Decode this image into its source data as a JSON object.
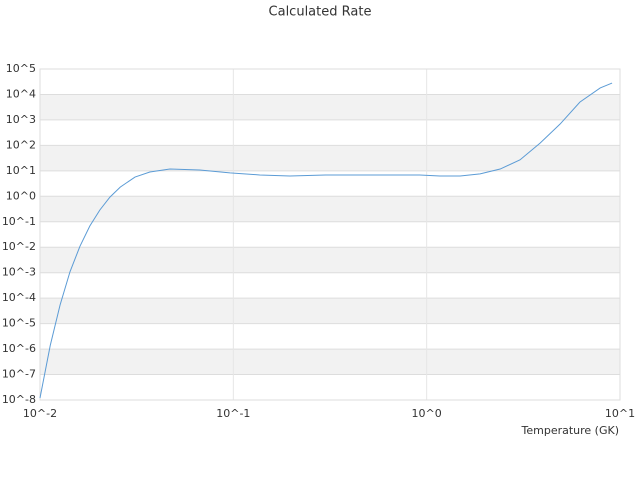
{
  "chart_data": {
    "type": "line",
    "title": "Calculated Rate",
    "x_label": "Temperature (GK)",
    "log_x": true,
    "log_y": true,
    "grid": true,
    "band_color": "#f2f2f2",
    "xlim": [
      0.01,
      10
    ],
    "xticks": [
      {
        "value": 0.01,
        "label": "10^-2"
      },
      {
        "value": 0.1,
        "label": "10^-1"
      },
      {
        "value": 1,
        "label": "10^0"
      },
      {
        "value": 10,
        "label": "10^1"
      }
    ],
    "ylim": [
      1e-08,
      100000
    ],
    "yticks": [
      {
        "value": 1e-08,
        "label": "10^-8"
      },
      {
        "value": 1e-07,
        "label": "10^-7"
      },
      {
        "value": 1e-06,
        "label": "10^-6"
      },
      {
        "value": 1e-05,
        "label": "10^-5"
      },
      {
        "value": 0.0001,
        "label": "10^-4"
      },
      {
        "value": 0.001,
        "label": "10^-3"
      },
      {
        "value": 0.01,
        "label": "10^-2"
      },
      {
        "value": 0.1,
        "label": "10^-1"
      },
      {
        "value": 1,
        "label": "10^0"
      },
      {
        "value": 10,
        "label": "10^1"
      },
      {
        "value": 100,
        "label": "10^2"
      },
      {
        "value": 1000,
        "label": "10^3"
      },
      {
        "value": 10000,
        "label": "10^4"
      },
      {
        "value": 100000,
        "label": "10^5"
      }
    ],
    "x": [
      0.01,
      0.0113,
      0.0127,
      0.0143,
      0.0161,
      0.0181,
      0.0204,
      0.023,
      0.026,
      0.031,
      0.037,
      0.047,
      0.067,
      0.096,
      0.137,
      0.196,
      0.3,
      0.5,
      0.92,
      1.17,
      1.49,
      1.89,
      2.4,
      3.04,
      3.86,
      4.9,
      6.2,
      7.9,
      9.1
    ],
    "series": [
      {
        "color": "#5b9bd5",
        "values": [
          1.2e-08,
          1.4e-06,
          5.4e-05,
          0.0011,
          0.011,
          0.068,
          0.29,
          0.93,
          2.3,
          5.7,
          9,
          11.8,
          10.8,
          8.3,
          6.9,
          6.3,
          6.9,
          6.9,
          6.9,
          6.3,
          6.3,
          7.6,
          11.8,
          27,
          123,
          690,
          5000,
          18000,
          28000
        ]
      }
    ]
  }
}
